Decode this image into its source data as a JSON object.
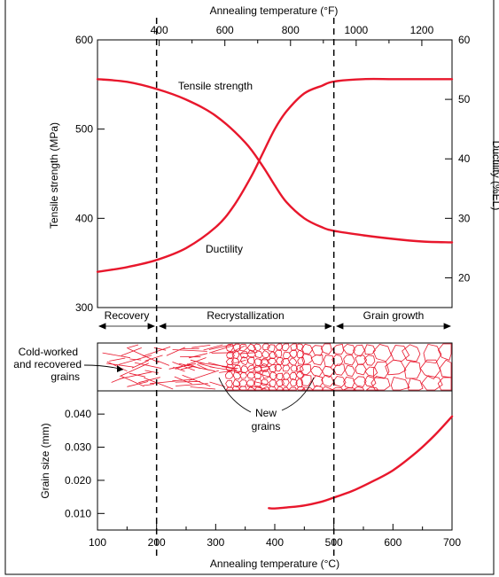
{
  "colors": {
    "curve": "#e8172c",
    "frame": "#000000",
    "background": "#ffffff"
  },
  "top_axis": {
    "label": "Annealing temperature (°F)",
    "ticks": [
      "400",
      "600",
      "800",
      "1000",
      "1200"
    ]
  },
  "bottom_axis": {
    "label": "Annealing temperature (°C)",
    "ticks": [
      "100",
      "200",
      "300",
      "400",
      "500",
      "600",
      "700"
    ]
  },
  "regions": {
    "recovery": "Recovery",
    "recrystallization": "Recrystallization",
    "grain_growth": "Grain growth"
  },
  "annotations": {
    "tensile_strength": "Tensile strength",
    "ductility": "Ductility",
    "cold_worked_1": "Cold-worked",
    "cold_worked_2": "and recovered",
    "cold_worked_3": "grains",
    "new_grains_1": "New",
    "new_grains_2": "grains"
  },
  "chart_data": [
    {
      "type": "line",
      "xlabel": "Annealing temperature (°C)",
      "xlim": [
        100,
        700
      ],
      "ylabel": "Tensile strength (MPa)",
      "ylim": [
        300,
        600
      ],
      "yticks": [
        "300",
        "400",
        "500",
        "600"
      ],
      "y2label": "Ductility (%EL)",
      "y2lim": [
        15,
        60
      ],
      "y2ticks": [
        "20",
        "30",
        "40",
        "50",
        "60"
      ],
      "secondary_xlabel": "Annealing temperature (°F)",
      "dividers_x": [
        200,
        500
      ],
      "series": [
        {
          "name": "Tensile strength",
          "axis": "left",
          "x": [
            100,
            150,
            200,
            250,
            300,
            350,
            380,
            400,
            420,
            450,
            480,
            500,
            550,
            600,
            650,
            700
          ],
          "y": [
            556,
            553,
            545,
            533,
            515,
            485,
            458,
            437,
            418,
            400,
            390,
            386,
            381,
            377,
            374,
            373
          ]
        },
        {
          "name": "Ductility",
          "axis": "right",
          "x": [
            100,
            150,
            200,
            250,
            300,
            330,
            360,
            380,
            400,
            420,
            450,
            480,
            500,
            550,
            600,
            650,
            700
          ],
          "y": [
            21,
            21.8,
            23,
            25,
            28.5,
            32,
            37,
            41,
            45,
            48,
            51,
            52.3,
            53,
            53.4,
            53.4,
            53.4,
            53.4
          ]
        }
      ]
    },
    {
      "type": "line",
      "xlabel": "Annealing temperature (°C)",
      "xlim": [
        100,
        700
      ],
      "ylabel": "Grain size (mm)",
      "ylim": [
        0.005,
        0.047
      ],
      "yticks": [
        "0.010",
        "0.020",
        "0.030",
        "0.040"
      ],
      "series": [
        {
          "name": "Grain size",
          "x": [
            390,
            400,
            420,
            450,
            480,
            500,
            530,
            560,
            600,
            640,
            670,
            700
          ],
          "y": [
            0.0116,
            0.0115,
            0.0118,
            0.0124,
            0.0136,
            0.0148,
            0.0167,
            0.0192,
            0.023,
            0.0285,
            0.0335,
            0.0393
          ]
        }
      ]
    }
  ]
}
